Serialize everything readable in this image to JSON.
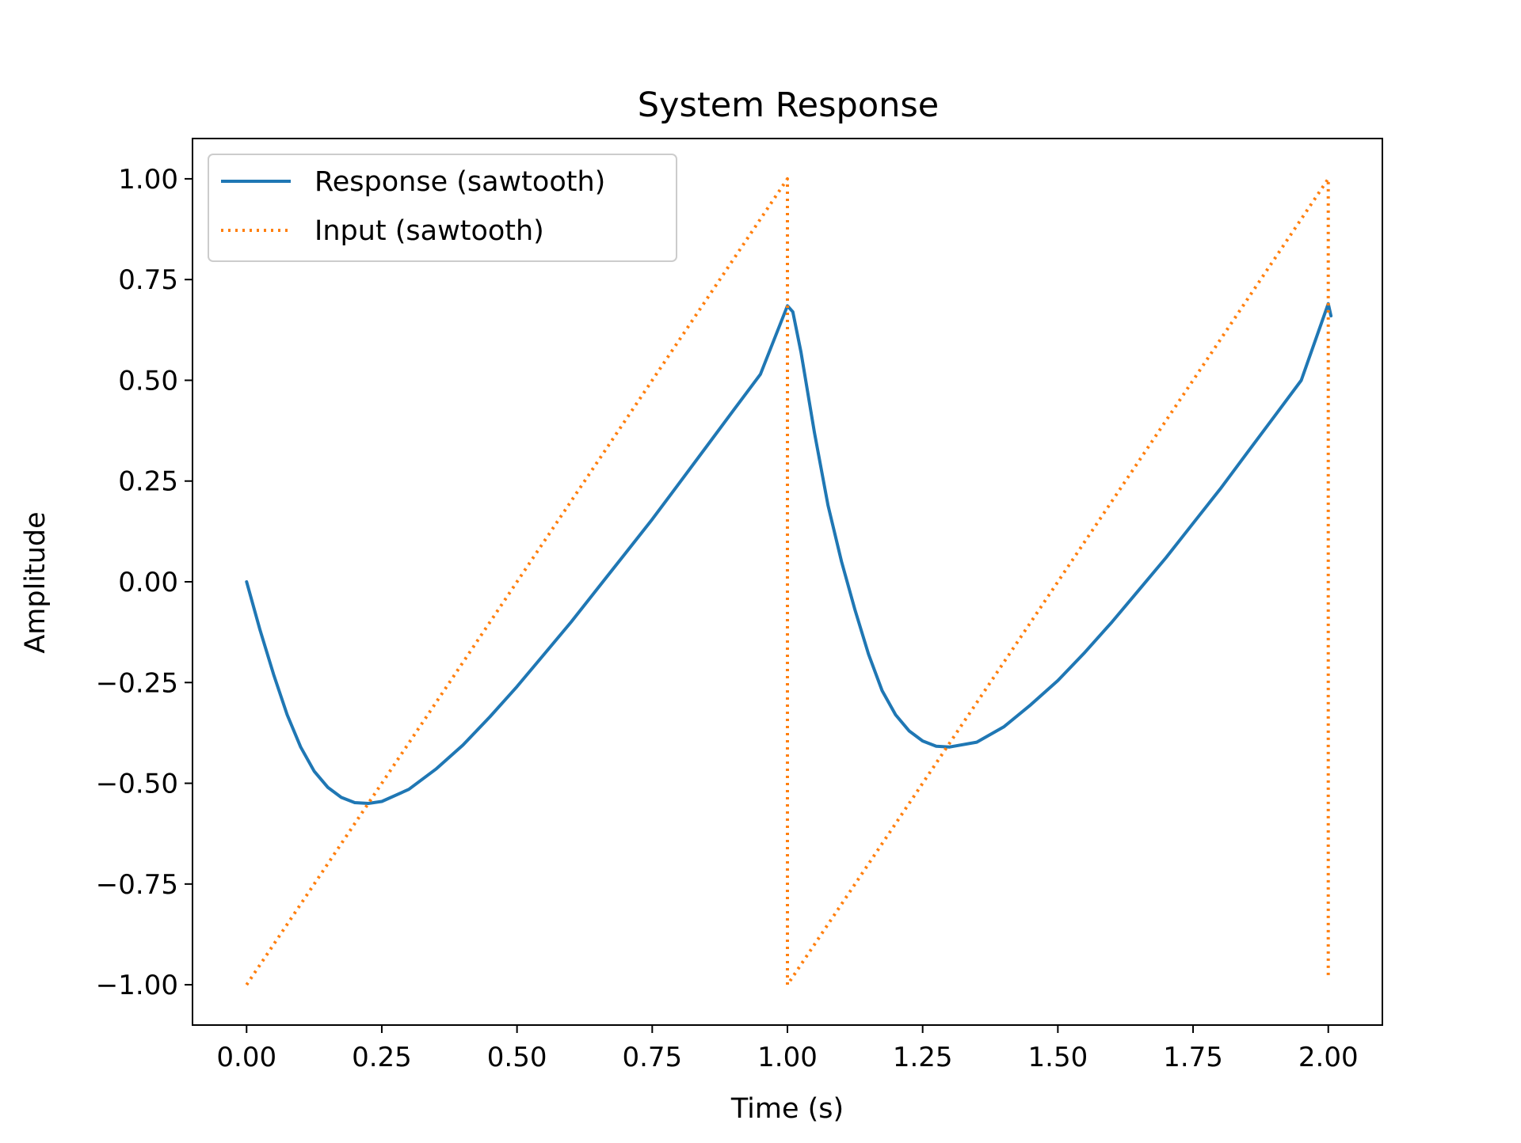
{
  "chart_data": {
    "type": "line",
    "title": "System Response",
    "xlabel": "Time (s)",
    "ylabel": "Amplitude",
    "xlim": [
      -0.1,
      2.1
    ],
    "ylim": [
      -1.1,
      1.1
    ],
    "xticks": [
      0.0,
      0.25,
      0.5,
      0.75,
      1.0,
      1.25,
      1.5,
      1.75,
      2.0
    ],
    "xtick_labels": [
      "0.00",
      "0.25",
      "0.50",
      "0.75",
      "1.00",
      "1.25",
      "1.50",
      "1.75",
      "2.00"
    ],
    "yticks": [
      1.0,
      0.75,
      0.5,
      0.25,
      0.0,
      -0.25,
      -0.5,
      -0.75,
      -1.0
    ],
    "ytick_labels": [
      "1.00",
      "0.75",
      "0.50",
      "0.25",
      "0.00",
      "−0.25",
      "−0.50",
      "−0.75",
      "−1.00"
    ],
    "grid": false,
    "legend_position": "top-left",
    "series": [
      {
        "name": "Response (sawtooth)",
        "color": "#1f77b4",
        "style": "solid",
        "x": [
          0.0,
          0.025,
          0.05,
          0.075,
          0.1,
          0.125,
          0.15,
          0.175,
          0.2,
          0.225,
          0.25,
          0.3,
          0.35,
          0.4,
          0.45,
          0.5,
          0.55,
          0.6,
          0.65,
          0.7,
          0.75,
          0.8,
          0.85,
          0.9,
          0.95,
          1.0,
          1.01,
          1.025,
          1.05,
          1.075,
          1.1,
          1.125,
          1.15,
          1.175,
          1.2,
          1.225,
          1.25,
          1.275,
          1.3,
          1.35,
          1.4,
          1.45,
          1.5,
          1.55,
          1.6,
          1.65,
          1.7,
          1.75,
          1.8,
          1.85,
          1.9,
          1.95,
          2.0,
          2.005
        ],
        "y": [
          0.0,
          -0.12,
          -0.23,
          -0.33,
          -0.41,
          -0.47,
          -0.51,
          -0.535,
          -0.548,
          -0.55,
          -0.545,
          -0.515,
          -0.465,
          -0.405,
          -0.335,
          -0.26,
          -0.18,
          -0.1,
          -0.015,
          0.07,
          0.155,
          0.245,
          0.335,
          0.425,
          0.515,
          0.685,
          0.67,
          0.57,
          0.37,
          0.19,
          0.05,
          -0.07,
          -0.18,
          -0.27,
          -0.33,
          -0.37,
          -0.395,
          -0.408,
          -0.41,
          -0.398,
          -0.36,
          -0.305,
          -0.245,
          -0.175,
          -0.1,
          -0.02,
          0.06,
          0.145,
          0.23,
          0.32,
          0.41,
          0.5,
          0.69,
          0.66
        ]
      },
      {
        "name": "Input (sawtooth)",
        "color": "#ff7f0e",
        "style": "dotted",
        "x": [
          0.0,
          1.0,
          1.0,
          2.0,
          2.0
        ],
        "y": [
          -1.0,
          1.0,
          -1.0,
          1.0,
          -0.98
        ]
      }
    ]
  }
}
